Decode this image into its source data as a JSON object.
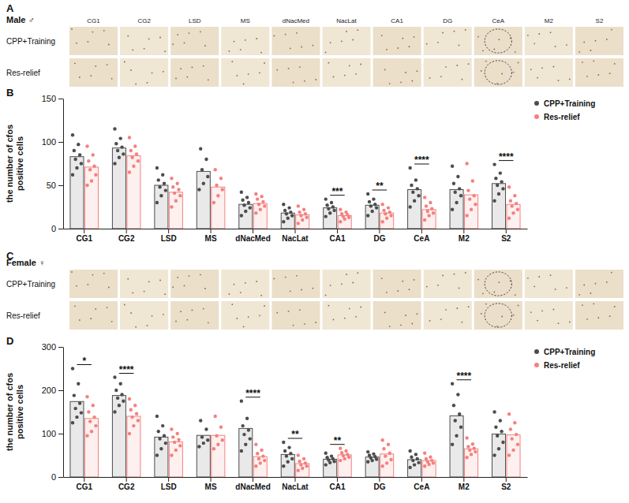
{
  "image_panels": [
    {
      "label": "A",
      "sex": "Male ♂",
      "columns": [
        "CG1",
        "CG2",
        "LSD",
        "MS",
        "dNacMed",
        "NacLat",
        "CA1",
        "DG",
        "CeA",
        "M2",
        "S2"
      ],
      "rows": [
        "CPP+Training",
        "Res-relief"
      ]
    },
    {
      "label": "C",
      "sex": "Female ♀",
      "rows": [
        "CPP+Training",
        "Res-relief"
      ]
    }
  ],
  "chart_data": [
    {
      "type": "bar",
      "panel_label": "B",
      "y_label": "the number of cfos positive cells",
      "categories": [
        "CG1",
        "CG2",
        "LSD",
        "MS",
        "dNacMed",
        "NacLat",
        "CA1",
        "DG",
        "CeA",
        "M2",
        "S2"
      ],
      "series": [
        {
          "name": "CPP+Training",
          "color": "#4d4d4d",
          "values": [
            83,
            93,
            50,
            66,
            28,
            18,
            24,
            27,
            45,
            45,
            52
          ],
          "points": [
            [
              62,
              70,
              75,
              80,
              85,
              90,
              97,
              108
            ],
            [
              75,
              82,
              86,
              90,
              94,
              98,
              104,
              115
            ],
            [
              30,
              38,
              44,
              48,
              52,
              56,
              62,
              70
            ],
            [
              45,
              52,
              60,
              68,
              80,
              92
            ],
            [
              15,
              20,
              24,
              27,
              30,
              33,
              36,
              42
            ],
            [
              8,
              12,
              15,
              17,
              19,
              21,
              24,
              28
            ],
            [
              14,
              18,
              21,
              23,
              25,
              27,
              30,
              34
            ],
            [
              15,
              20,
              24,
              26,
              28,
              31,
              34,
              40
            ],
            [
              25,
              32,
              38,
              42,
              46,
              50,
              56,
              70
            ],
            [
              22,
              30,
              38,
              42,
              46,
              52,
              60,
              72
            ],
            [
              32,
              40,
              46,
              50,
              54,
              58,
              64,
              74
            ]
          ]
        },
        {
          "name": "Res-relief",
          "color": "#f4817f",
          "values": [
            71,
            84,
            42,
            48,
            29,
            16,
            15,
            18,
            22,
            39,
            28
          ],
          "points": [
            [
              50,
              55,
              62,
              68,
              72,
              78,
              85,
              95
            ],
            [
              65,
              72,
              78,
              82,
              86,
              90,
              95,
              105
            ],
            [
              25,
              32,
              38,
              41,
              45,
              48,
              52,
              58
            ],
            [
              30,
              38,
              45,
              50,
              58,
              68
            ],
            [
              18,
              22,
              26,
              28,
              31,
              34,
              37,
              40
            ],
            [
              6,
              10,
              13,
              15,
              17,
              19,
              22,
              26
            ],
            [
              8,
              11,
              13,
              14,
              16,
              17,
              19,
              22
            ],
            [
              8,
              12,
              15,
              17,
              19,
              21,
              24,
              28
            ],
            [
              10,
              15,
              18,
              20,
              23,
              26,
              30,
              36
            ],
            [
              15,
              22,
              28,
              34,
              38,
              44,
              55,
              75
            ],
            [
              12,
              18,
              22,
              26,
              29,
              32,
              38,
              48
            ]
          ]
        }
      ],
      "ylim": [
        0,
        150
      ],
      "yticks": [
        0,
        50,
        100,
        150
      ],
      "legend": "top-right",
      "annotations": [
        {
          "category": "CA1",
          "text": "***"
        },
        {
          "category": "DG",
          "text": "**"
        },
        {
          "category": "CeA",
          "text": "****"
        },
        {
          "category": "S2",
          "text": "****"
        }
      ]
    },
    {
      "type": "bar",
      "panel_label": "D",
      "y_label": "the number of cfos positive cells",
      "categories": [
        "CG1",
        "CG2",
        "LSD",
        "MS",
        "dNacMed",
        "NacLat",
        "CA1",
        "DG",
        "CeA",
        "M2",
        "S2"
      ],
      "series": [
        {
          "name": "CPP+Training",
          "color": "#4d4d4d",
          "values": [
            174,
            188,
            92,
            96,
            112,
            52,
            41,
            46,
            40,
            141,
            99
          ],
          "points": [
            [
              125,
              138,
              148,
              158,
              170,
              188,
              215,
              250
            ],
            [
              150,
              165,
              175,
              182,
              190,
              200,
              215,
              230
            ],
            [
              50,
              65,
              78,
              88,
              95,
              105,
              118,
              140
            ],
            [
              70,
              78,
              85,
              92,
              110,
              130
            ],
            [
              60,
              75,
              88,
              98,
              108,
              118,
              135,
              175
            ],
            [
              25,
              35,
              42,
              48,
              54,
              60,
              68,
              80
            ],
            [
              28,
              33,
              36,
              39,
              42,
              45,
              48,
              55
            ],
            [
              35,
              38,
              41,
              44,
              47,
              50,
              53,
              58
            ],
            [
              22,
              28,
              33,
              38,
              42,
              46,
              52,
              60
            ],
            [
              75,
              95,
              115,
              130,
              145,
              165,
              190,
              215
            ],
            [
              50,
              65,
              80,
              95,
              105,
              115,
              130,
              150
            ]
          ]
        },
        {
          "name": "Res-relief",
          "color": "#f4817f",
          "values": [
            135,
            140,
            81,
            96,
            47,
            31,
            51,
            53,
            38,
            65,
            97
          ],
          "points": [
            [
              95,
              105,
              118,
              128,
              138,
              150,
              165,
              185
            ],
            [
              100,
              118,
              130,
              138,
              146,
              155,
              165,
              180
            ],
            [
              50,
              62,
              72,
              80,
              86,
              92,
              100,
              110
            ],
            [
              65,
              75,
              85,
              95,
              115,
              140
            ],
            [
              25,
              32,
              38,
              42,
              48,
              54,
              62,
              75
            ],
            [
              15,
              20,
              25,
              28,
              32,
              36,
              42,
              50
            ],
            [
              38,
              42,
              46,
              49,
              52,
              56,
              60,
              66
            ],
            [
              25,
              32,
              40,
              48,
              55,
              65,
              75,
              85
            ],
            [
              25,
              29,
              32,
              35,
              38,
              42,
              46,
              55
            ],
            [
              45,
              52,
              58,
              62,
              66,
              70,
              76,
              90
            ],
            [
              50,
              62,
              75,
              88,
              98,
              110,
              125,
              145
            ]
          ]
        }
      ],
      "ylim": [
        0,
        300
      ],
      "yticks": [
        0,
        100,
        200,
        300
      ],
      "legend": "top-right",
      "annotations": [
        {
          "category": "CG1",
          "text": "*"
        },
        {
          "category": "CG2",
          "text": "****"
        },
        {
          "category": "dNacMed",
          "text": "****"
        },
        {
          "category": "NacLat",
          "text": "**"
        },
        {
          "category": "CA1",
          "text": "**"
        },
        {
          "category": "M2",
          "text": "****"
        }
      ]
    }
  ]
}
